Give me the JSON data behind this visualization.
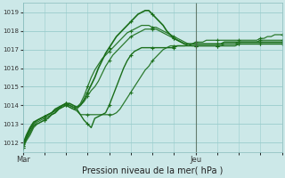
{
  "title": "Pression niveau de la mer( hPa )",
  "bg_color": "#cce8e8",
  "grid_color": "#99cccc",
  "line_color": "#1a6e1a",
  "ylim": [
    1011.5,
    1019.5
  ],
  "xtick_labels": [
    "Mar",
    "Jeu"
  ],
  "xtick_positions": [
    0,
    48
  ],
  "yticks": [
    1012,
    1013,
    1014,
    1015,
    1016,
    1017,
    1018,
    1019
  ],
  "vline_x": 48,
  "total_hours": 72,
  "series": [
    [
      1011.7,
      1012.2,
      1012.5,
      1012.9,
      1013.0,
      1013.1,
      1013.2,
      1013.3,
      1013.5,
      1013.6,
      1013.8,
      1013.9,
      1014.0,
      1013.9,
      1013.8,
      1013.7,
      1013.5,
      1013.5,
      1013.5,
      1013.5,
      1013.5,
      1013.5,
      1013.5,
      1013.5,
      1013.5,
      1013.5,
      1013.6,
      1013.8,
      1014.1,
      1014.4,
      1014.7,
      1015.0,
      1015.3,
      1015.6,
      1015.9,
      1016.1,
      1016.4,
      1016.6,
      1016.8,
      1017.0,
      1017.1,
      1017.2,
      1017.2,
      1017.2,
      1017.2,
      1017.2,
      1017.3,
      1017.3,
      1017.4,
      1017.4,
      1017.4,
      1017.5,
      1017.5,
      1017.5,
      1017.5,
      1017.5,
      1017.5,
      1017.5,
      1017.5,
      1017.5,
      1017.5,
      1017.5,
      1017.5,
      1017.5,
      1017.5,
      1017.5,
      1017.6,
      1017.6,
      1017.7,
      1017.7,
      1017.8,
      1017.8,
      1017.8
    ],
    [
      1011.7,
      1012.1,
      1012.4,
      1012.8,
      1013.0,
      1013.1,
      1013.2,
      1013.3,
      1013.5,
      1013.6,
      1013.8,
      1013.9,
      1014.0,
      1013.9,
      1013.8,
      1013.8,
      1014.0,
      1014.2,
      1014.5,
      1014.8,
      1015.0,
      1015.3,
      1015.7,
      1016.1,
      1016.4,
      1016.7,
      1016.9,
      1017.1,
      1017.3,
      1017.5,
      1017.7,
      1017.8,
      1017.9,
      1018.0,
      1018.1,
      1018.1,
      1018.1,
      1018.1,
      1018.0,
      1017.9,
      1017.8,
      1017.7,
      1017.6,
      1017.5,
      1017.4,
      1017.3,
      1017.3,
      1017.2,
      1017.2,
      1017.2,
      1017.2,
      1017.2,
      1017.2,
      1017.2,
      1017.2,
      1017.2,
      1017.3,
      1017.3,
      1017.3,
      1017.3,
      1017.4,
      1017.4,
      1017.4,
      1017.4,
      1017.4,
      1017.4,
      1017.5,
      1017.5,
      1017.5,
      1017.5,
      1017.5,
      1017.5,
      1017.5
    ],
    [
      1011.8,
      1012.2,
      1012.6,
      1012.9,
      1013.1,
      1013.2,
      1013.3,
      1013.4,
      1013.5,
      1013.6,
      1013.8,
      1014.0,
      1014.1,
      1014.0,
      1013.9,
      1013.9,
      1014.1,
      1014.5,
      1015.0,
      1015.5,
      1015.9,
      1016.2,
      1016.5,
      1016.7,
      1016.9,
      1017.1,
      1017.3,
      1017.5,
      1017.7,
      1017.9,
      1018.0,
      1018.1,
      1018.2,
      1018.3,
      1018.3,
      1018.3,
      1018.2,
      1018.2,
      1018.1,
      1018.0,
      1017.9,
      1017.8,
      1017.7,
      1017.6,
      1017.5,
      1017.4,
      1017.3,
      1017.3,
      1017.3,
      1017.3,
      1017.3,
      1017.3,
      1017.3,
      1017.3,
      1017.3,
      1017.3,
      1017.3,
      1017.3,
      1017.3,
      1017.3,
      1017.3,
      1017.3,
      1017.3,
      1017.3,
      1017.3,
      1017.3,
      1017.3,
      1017.3,
      1017.3,
      1017.3,
      1017.3,
      1017.3,
      1017.3
    ],
    [
      1011.8,
      1012.3,
      1012.7,
      1013.0,
      1013.2,
      1013.3,
      1013.4,
      1013.5,
      1013.6,
      1013.7,
      1013.9,
      1014.0,
      1014.1,
      1014.0,
      1013.9,
      1013.8,
      1013.5,
      1013.2,
      1013.0,
      1012.8,
      1013.3,
      1013.4,
      1013.5,
      1013.6,
      1014.0,
      1014.5,
      1015.0,
      1015.5,
      1016.0,
      1016.4,
      1016.7,
      1016.9,
      1017.0,
      1017.1,
      1017.1,
      1017.1,
      1017.1,
      1017.1,
      1017.1,
      1017.1,
      1017.1,
      1017.1,
      1017.1,
      1017.2,
      1017.2,
      1017.2,
      1017.2,
      1017.2,
      1017.2,
      1017.2,
      1017.2,
      1017.2,
      1017.2,
      1017.2,
      1017.2,
      1017.2,
      1017.2,
      1017.2,
      1017.2,
      1017.2,
      1017.3,
      1017.3,
      1017.3,
      1017.3,
      1017.3,
      1017.3,
      1017.3,
      1017.3,
      1017.3,
      1017.3,
      1017.3,
      1017.3,
      1017.3
    ],
    [
      1011.9,
      1012.4,
      1012.8,
      1013.1,
      1013.2,
      1013.3,
      1013.4,
      1013.5,
      1013.6,
      1013.8,
      1013.9,
      1014.0,
      1014.1,
      1014.1,
      1014.0,
      1013.9,
      1014.0,
      1014.3,
      1014.7,
      1015.1,
      1015.5,
      1016.0,
      1016.4,
      1016.8,
      1017.1,
      1017.4,
      1017.7,
      1017.9,
      1018.1,
      1018.3,
      1018.5,
      1018.7,
      1018.9,
      1019.0,
      1019.1,
      1019.1,
      1018.9,
      1018.7,
      1018.5,
      1018.3,
      1018.0,
      1017.8,
      1017.6,
      1017.5,
      1017.4,
      1017.3,
      1017.3,
      1017.3,
      1017.3,
      1017.3,
      1017.3,
      1017.3,
      1017.3,
      1017.3,
      1017.3,
      1017.3,
      1017.4,
      1017.4,
      1017.4,
      1017.4,
      1017.4,
      1017.4,
      1017.4,
      1017.4,
      1017.4,
      1017.4,
      1017.4,
      1017.4,
      1017.4,
      1017.4,
      1017.4,
      1017.4,
      1017.4
    ]
  ],
  "line_widths": [
    0.9,
    0.9,
    0.9,
    1.0,
    1.2
  ],
  "alphas": [
    0.9,
    0.9,
    0.9,
    1.0,
    1.0
  ],
  "marker_sizes": [
    2.5,
    2.5,
    2.5,
    3.0,
    3.5
  ],
  "figsize": [
    3.2,
    2.0
  ],
  "dpi": 100
}
